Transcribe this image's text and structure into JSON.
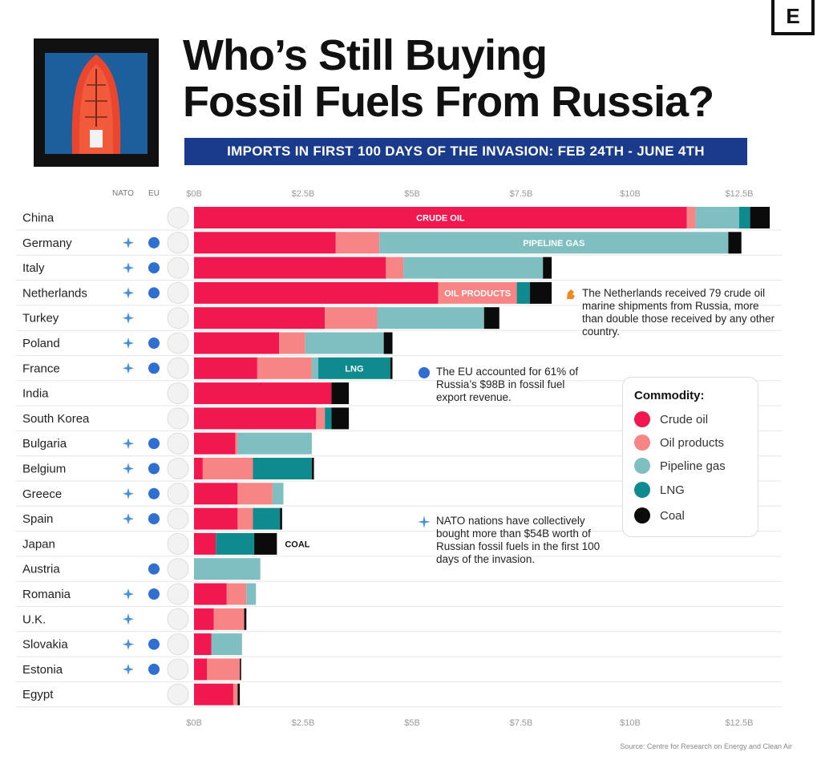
{
  "header": {
    "title_line1": "Who’s Still Buying",
    "title_line2": "Fossil Fuels From Russia?",
    "subtitle": "IMPORTS IN FIRST 100 DAYS OF THE INVASION:  FEB 24TH - JUNE 4TH",
    "logo_letter": "E"
  },
  "column_headers": {
    "nato": "NATO",
    "eu": "EU"
  },
  "legend": {
    "title": "Commodity:",
    "items": [
      "Crude oil",
      "Oil products",
      "Pipeline gas",
      "LNG",
      "Coal"
    ]
  },
  "colors": {
    "crude_oil": "#f0184f",
    "oil_products": "#f78585",
    "pipeline_gas": "#7fbfc1",
    "lng": "#0f8a8f",
    "coal": "#0b0b0b",
    "nato_marker": "#4a90d9",
    "eu_marker": "#2f6fcf",
    "note_netherlands": "#f08a24"
  },
  "notes": {
    "netherlands": "The Netherlands received 79 crude oil marine shipments from Russia, more than double those received by any other country.",
    "eu": "The EU accounted for 61% of Russia’s $98B in fossil fuel export revenue.",
    "nato": "NATO nations have collectively bought more than $54B worth of Russian fossil fuels in the first 100 days of the invasion."
  },
  "source": "Source: Centre for Research on Energy and Clean Air",
  "chart_data": {
    "type": "bar",
    "orientation": "horizontal",
    "stacked": true,
    "title": "Who’s Still Buying Fossil Fuels From Russia?",
    "subtitle": "IMPORTS IN FIRST 100 DAYS OF THE INVASION:  FEB 24TH - JUNE 4TH",
    "unit": "USD billions",
    "xlim": [
      0,
      13.5
    ],
    "x_ticks": [
      "$0B",
      "$2.5B",
      "$5B",
      "$7.5B",
      "$10B",
      "$12.5B"
    ],
    "x_tick_values": [
      0,
      2.5,
      5,
      7.5,
      10,
      12.5
    ],
    "grid": false,
    "legend_position": "right",
    "categories": [
      "China",
      "Germany",
      "Italy",
      "Netherlands",
      "Turkey",
      "Poland",
      "France",
      "India",
      "South Korea",
      "Bulgaria",
      "Belgium",
      "Greece",
      "Spain",
      "Japan",
      "Austria",
      "Romania",
      "U.K.",
      "Slovakia",
      "Estonia",
      "Egypt"
    ],
    "nato": [
      false,
      true,
      true,
      true,
      true,
      true,
      true,
      false,
      false,
      true,
      true,
      true,
      true,
      false,
      false,
      true,
      true,
      true,
      true,
      false
    ],
    "eu": [
      false,
      true,
      true,
      true,
      false,
      true,
      true,
      false,
      false,
      true,
      true,
      true,
      true,
      false,
      true,
      true,
      false,
      true,
      true,
      false
    ],
    "series": [
      {
        "name": "Crude oil",
        "values": [
          11.3,
          3.25,
          4.4,
          5.6,
          3.0,
          1.95,
          1.45,
          3.15,
          2.8,
          0.95,
          0.2,
          1.0,
          1.0,
          0.5,
          0,
          0.75,
          0.45,
          0.4,
          0.3,
          0.9
        ]
      },
      {
        "name": "Oil products",
        "values": [
          0.2,
          1.0,
          0.4,
          1.8,
          1.2,
          0.6,
          1.25,
          0,
          0.2,
          0.05,
          1.15,
          0.8,
          0.35,
          0,
          0,
          0.45,
          0.7,
          0,
          0.75,
          0.1
        ]
      },
      {
        "name": "Pipeline gas",
        "values": [
          1.0,
          8.0,
          3.2,
          0,
          2.45,
          1.8,
          0.15,
          0,
          0,
          1.7,
          0,
          0.25,
          0,
          0,
          1.52,
          0.22,
          0,
          0.7,
          0,
          0
        ]
      },
      {
        "name": "LNG",
        "values": [
          0.25,
          0,
          0,
          0.3,
          0,
          0,
          1.65,
          0,
          0.15,
          0,
          1.35,
          0,
          0.62,
          0.88,
          0,
          0,
          0,
          0,
          0,
          0
        ]
      },
      {
        "name": "Coal",
        "values": [
          0.45,
          0.3,
          0.2,
          0.5,
          0.35,
          0.2,
          0.05,
          0.4,
          0.4,
          0,
          0.05,
          0,
          0.05,
          0.52,
          0,
          0,
          0.05,
          0,
          0.03,
          0.05
        ]
      }
    ],
    "bar_labels": [
      {
        "category": "China",
        "series": "Crude oil",
        "text": "CRUDE OIL"
      },
      {
        "category": "Germany",
        "series": "Pipeline gas",
        "text": "PIPELINE GAS"
      },
      {
        "category": "Netherlands",
        "series": "Oil products",
        "text": "OIL PRODUCTS"
      },
      {
        "category": "France",
        "series": "LNG",
        "text": "LNG"
      },
      {
        "category": "Japan",
        "series": "after",
        "text": "COAL"
      }
    ]
  }
}
